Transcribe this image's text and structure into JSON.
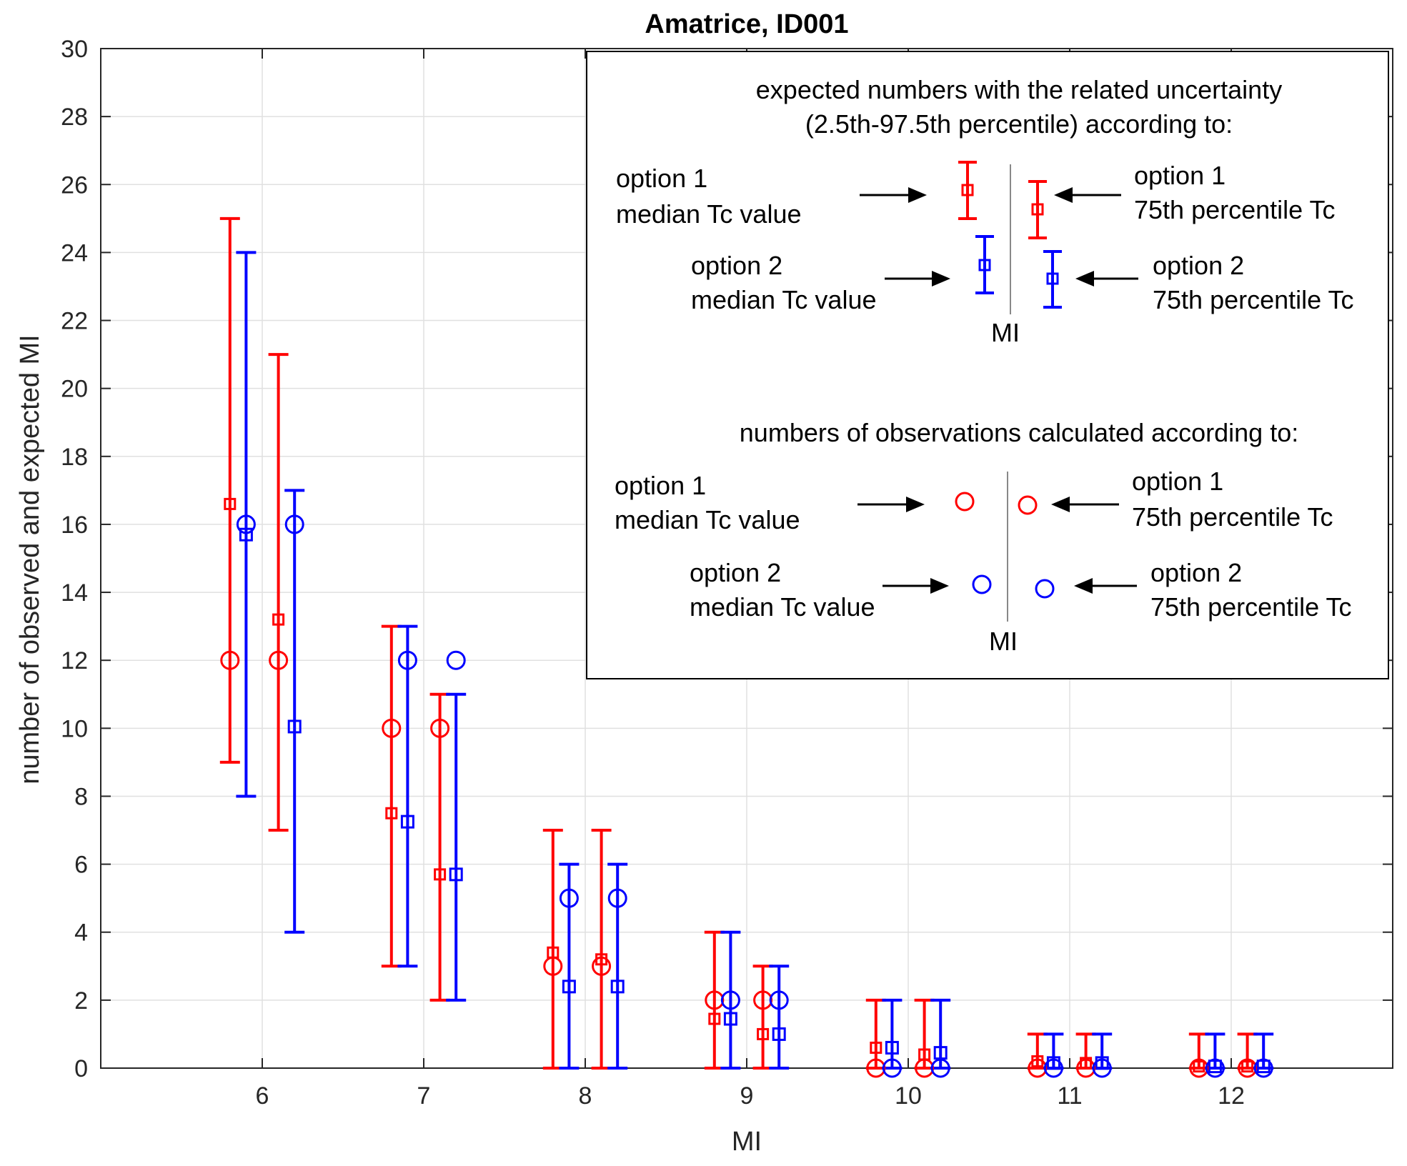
{
  "chart_data": {
    "type": "errorbar",
    "title": "Amatrice, ID001",
    "xlabel": "MI",
    "ylabel": "number of observed and expected MI",
    "xlim": [
      5,
      13
    ],
    "ylim": [
      0,
      30
    ],
    "xticks": [
      6,
      7,
      8,
      9,
      10,
      11,
      12
    ],
    "yticks": [
      0,
      2,
      4,
      6,
      8,
      10,
      12,
      14,
      16,
      18,
      20,
      22,
      24,
      26,
      28,
      30
    ],
    "grid": true,
    "colors": {
      "option1": "#ff0000",
      "option2": "#0000ff",
      "axis": "#262626",
      "grid": "#e0e0e0"
    },
    "categories": [
      6,
      7,
      8,
      9,
      10,
      11,
      12
    ],
    "series": [
      {
        "name": "option 1 median Tc value",
        "offset": -0.2,
        "color": "#ff0000",
        "expected": [
          16.6,
          7.5,
          3.4,
          1.45,
          0.6,
          0.2,
          0.05
        ],
        "low": [
          9,
          3,
          0,
          0,
          0,
          0,
          0
        ],
        "high": [
          25,
          13,
          7,
          4,
          2,
          1,
          1
        ],
        "observed": [
          12,
          10,
          3,
          2,
          0,
          0,
          0
        ]
      },
      {
        "name": "option 2 median Tc value",
        "offset": -0.1,
        "color": "#0000ff",
        "expected": [
          15.7,
          7.25,
          2.4,
          1.45,
          0.6,
          0.15,
          0.05
        ],
        "low": [
          8,
          3,
          0,
          0,
          0,
          0,
          0
        ],
        "high": [
          24,
          13,
          6,
          4,
          2,
          1,
          1
        ],
        "observed": [
          16,
          12,
          5,
          2,
          0,
          0,
          0
        ]
      },
      {
        "name": "option 1 75th percentile Tc",
        "offset": 0.1,
        "color": "#ff0000",
        "expected": [
          13.2,
          5.7,
          3.2,
          1.0,
          0.4,
          0.15,
          0.05
        ],
        "low": [
          7,
          2,
          0,
          0,
          0,
          0,
          0
        ],
        "high": [
          21,
          11,
          7,
          3,
          2,
          1,
          1
        ],
        "observed": [
          12,
          10,
          3,
          2,
          0,
          0,
          0
        ]
      },
      {
        "name": "option 2 75th percentile Tc",
        "offset": 0.2,
        "color": "#0000ff",
        "expected": [
          10.05,
          5.7,
          2.4,
          1.0,
          0.45,
          0.15,
          0.05
        ],
        "low": [
          4,
          2,
          0,
          0,
          0,
          0,
          0
        ],
        "high": [
          17,
          11,
          6,
          3,
          2,
          1,
          1
        ],
        "observed": [
          16,
          12,
          5,
          2,
          0,
          0,
          0
        ]
      }
    ],
    "legend": {
      "position": "top-right",
      "heading1_line1": "expected numbers with the related uncertainty",
      "heading1_line2": "(2.5th-97.5th percentile) according to:",
      "heading2": "numbers of observations calculated according to:",
      "opt1_median_line1": "option 1",
      "opt1_median_line2": "median Tc value",
      "opt1_p75_line1": "option 1",
      "opt1_p75_line2": "75th percentile Tc",
      "opt2_median_line1": "option 2",
      "opt2_median_line2": "median Tc value",
      "opt2_p75_line1": "option 2",
      "opt2_p75_line2": "75th percentile Tc",
      "mi_label": "MI"
    }
  }
}
